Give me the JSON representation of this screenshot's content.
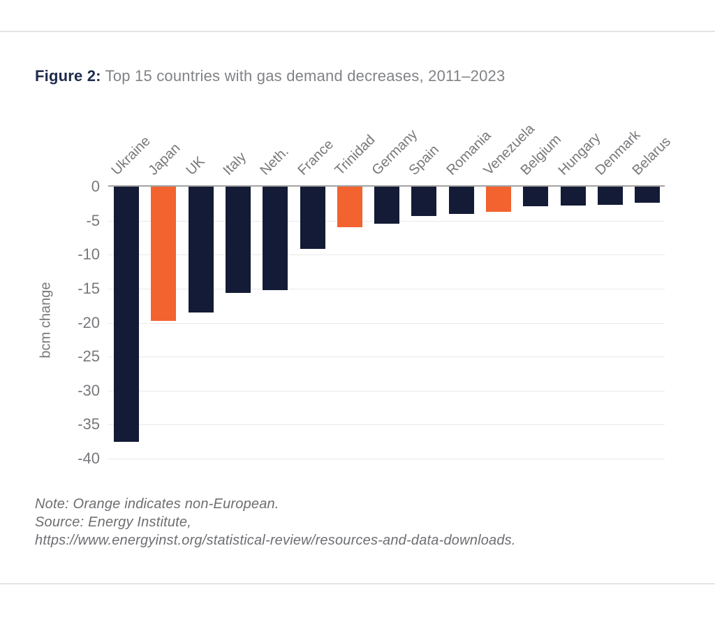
{
  "figure": {
    "label": "Figure 2:",
    "title": "Top 15 countries with gas demand decreases, 2011–2023"
  },
  "chart_data": {
    "type": "bar",
    "title": "Top 15 countries with gas demand decreases, 2011–2023",
    "categories": [
      "Ukraine",
      "Japan",
      "UK",
      "Italy",
      "Neth.",
      "France",
      "Trinidad",
      "Germany",
      "Spain",
      "Romania",
      "Venezuela",
      "Belgium",
      "Hungary",
      "Denmark",
      "Belarus"
    ],
    "values": [
      -37.5,
      -19.7,
      -18.5,
      -15.6,
      -15.2,
      -9.2,
      -6.0,
      -5.4,
      -4.3,
      -4.0,
      -3.7,
      -2.9,
      -2.8,
      -2.7,
      -2.4
    ],
    "non_european_flags": [
      false,
      true,
      false,
      false,
      false,
      false,
      true,
      false,
      false,
      false,
      true,
      false,
      false,
      false,
      false
    ],
    "xlabel": "",
    "ylabel": "bcm change",
    "ylim": [
      -40,
      0
    ],
    "ytick_labels": [
      "0",
      "-5",
      "-10",
      "-15",
      "-20",
      "-25",
      "-30",
      "-35",
      "-40"
    ],
    "grid": true,
    "legend_position": "none",
    "colors": {
      "european_bar": "#141b36",
      "non_european_bar": "#f2632f",
      "axis_line": "#a2a2a2",
      "gridline": "#e9e9e9",
      "tick_text": "#77787b",
      "title_label": "#1f2b4d",
      "title_text": "#808285"
    }
  },
  "notes": {
    "lines": [
      "Note: Orange indicates non-European.",
      "Source: Energy Institute,",
      "https://www.energyinst.org/statistical-review/resources-and-data-downloads."
    ]
  }
}
